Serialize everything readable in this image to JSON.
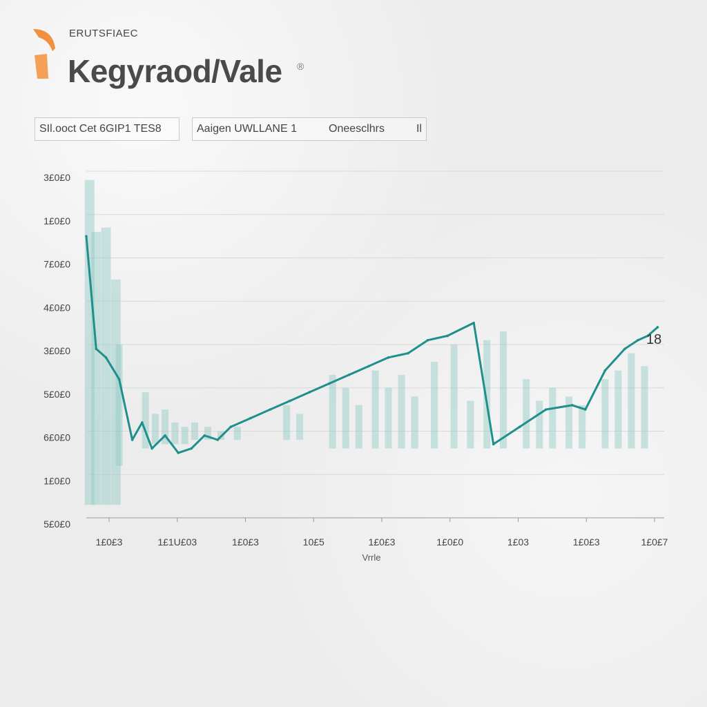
{
  "header": {
    "kicker": "ERUTSFIAEC",
    "title": "Kegyraod/Vale",
    "title_mark": "®"
  },
  "filters": {
    "left_label": "SIl.ooct Cet 6GIP1 TES8",
    "right_label_a": "Aaigen UWLLANE 1",
    "right_label_b": "Oneesclhrs",
    "right_label_c": "Il"
  },
  "colors": {
    "line": "#1f8f8c",
    "bar": "#8fc9c4",
    "accent": "#f08a3a"
  },
  "chart_data": {
    "type": "line",
    "xlabel": "Vrrle",
    "ylabel": "",
    "x_tick_labels": [
      "1£0£3",
      "1£1U£03",
      "1£0£3",
      "10£5",
      "1£0£3",
      "1£0£0",
      "1£03",
      "1£0£3",
      "1£0£7"
    ],
    "y_tick_labels": [
      "3£0£0",
      "1£0£0",
      "7£0£0",
      "4£0£0",
      "3£0£0",
      "5£0£0",
      "6£0£0",
      "1£0£0",
      "5£0£0"
    ],
    "ylim": [
      0,
      8
    ],
    "grid": true,
    "end_label": "18",
    "series": [
      {
        "kind": "line",
        "points": [
          [
            0,
            6.5
          ],
          [
            0.15,
            3.9
          ],
          [
            0.3,
            3.7
          ],
          [
            0.5,
            3.2
          ],
          [
            0.7,
            1.8
          ],
          [
            0.85,
            2.2
          ],
          [
            1.0,
            1.6
          ],
          [
            1.2,
            1.9
          ],
          [
            1.4,
            1.5
          ],
          [
            1.6,
            1.6
          ],
          [
            1.8,
            1.9
          ],
          [
            2.0,
            1.8
          ],
          [
            2.2,
            2.1
          ],
          [
            2.5,
            2.3
          ],
          [
            2.8,
            2.5
          ],
          [
            3.1,
            2.7
          ],
          [
            3.4,
            2.9
          ],
          [
            3.7,
            3.1
          ],
          [
            4.0,
            3.3
          ],
          [
            4.3,
            3.5
          ],
          [
            4.6,
            3.7
          ],
          [
            4.9,
            3.8
          ],
          [
            5.2,
            4.1
          ],
          [
            5.5,
            4.2
          ],
          [
            5.9,
            4.5
          ],
          [
            6.2,
            1.7
          ],
          [
            6.6,
            2.1
          ],
          [
            7.0,
            2.5
          ],
          [
            7.4,
            2.6
          ],
          [
            7.6,
            2.5
          ],
          [
            7.9,
            3.4
          ],
          [
            8.2,
            3.9
          ],
          [
            8.4,
            4.1
          ],
          [
            8.55,
            4.2
          ],
          [
            8.7,
            4.4
          ]
        ]
      }
    ],
    "bars": [
      {
        "x": 0.05,
        "top": 7.8,
        "bottom": 0.3
      },
      {
        "x": 0.15,
        "top": 6.6,
        "bottom": 0.3
      },
      {
        "x": 0.3,
        "top": 6.7,
        "bottom": 0.3
      },
      {
        "x": 0.45,
        "top": 5.5,
        "bottom": 0.3
      },
      {
        "x": 0.5,
        "top": 4.0,
        "bottom": 1.2
      },
      {
        "x": 0.9,
        "top": 2.9,
        "bottom": 1.6
      },
      {
        "x": 1.05,
        "top": 2.4,
        "bottom": 1.7
      },
      {
        "x": 1.2,
        "top": 2.5,
        "bottom": 1.7
      },
      {
        "x": 1.35,
        "top": 2.2,
        "bottom": 1.7
      },
      {
        "x": 1.5,
        "top": 2.1,
        "bottom": 1.7
      },
      {
        "x": 1.65,
        "top": 2.2,
        "bottom": 1.8
      },
      {
        "x": 1.85,
        "top": 2.1,
        "bottom": 1.8
      },
      {
        "x": 2.05,
        "top": 2.0,
        "bottom": 1.8
      },
      {
        "x": 2.3,
        "top": 2.1,
        "bottom": 1.8
      },
      {
        "x": 3.05,
        "top": 2.6,
        "bottom": 1.8
      },
      {
        "x": 3.25,
        "top": 2.4,
        "bottom": 1.8
      },
      {
        "x": 3.75,
        "top": 3.3,
        "bottom": 1.6
      },
      {
        "x": 3.95,
        "top": 3.0,
        "bottom": 1.6
      },
      {
        "x": 4.15,
        "top": 2.6,
        "bottom": 1.6
      },
      {
        "x": 4.4,
        "top": 3.4,
        "bottom": 1.6
      },
      {
        "x": 4.6,
        "top": 3.0,
        "bottom": 1.6
      },
      {
        "x": 4.8,
        "top": 3.3,
        "bottom": 1.6
      },
      {
        "x": 5.0,
        "top": 2.8,
        "bottom": 1.6
      },
      {
        "x": 5.3,
        "top": 3.6,
        "bottom": 1.6
      },
      {
        "x": 5.6,
        "top": 4.0,
        "bottom": 1.6
      },
      {
        "x": 5.85,
        "top": 2.7,
        "bottom": 1.6
      },
      {
        "x": 6.1,
        "top": 4.1,
        "bottom": 1.6
      },
      {
        "x": 6.35,
        "top": 4.3,
        "bottom": 1.6
      },
      {
        "x": 6.7,
        "top": 3.2,
        "bottom": 1.6
      },
      {
        "x": 6.9,
        "top": 2.7,
        "bottom": 1.6
      },
      {
        "x": 7.1,
        "top": 3.0,
        "bottom": 1.6
      },
      {
        "x": 7.35,
        "top": 2.8,
        "bottom": 1.6
      },
      {
        "x": 7.55,
        "top": 2.6,
        "bottom": 1.6
      },
      {
        "x": 7.9,
        "top": 3.2,
        "bottom": 1.6
      },
      {
        "x": 8.1,
        "top": 3.4,
        "bottom": 1.6
      },
      {
        "x": 8.3,
        "top": 3.8,
        "bottom": 1.6
      },
      {
        "x": 8.5,
        "top": 3.5,
        "bottom": 1.6
      }
    ]
  }
}
